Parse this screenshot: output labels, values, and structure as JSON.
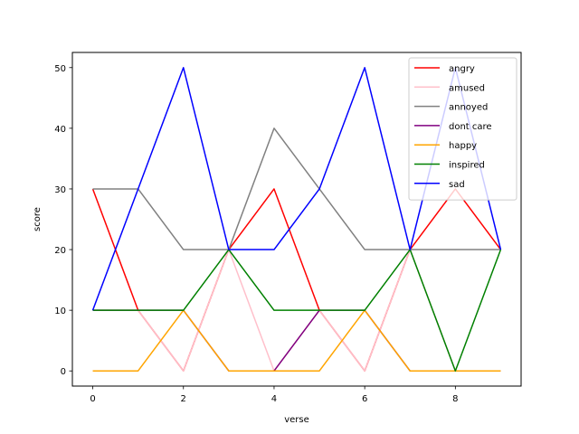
{
  "chart_data": {
    "type": "line",
    "title": "",
    "xlabel": "verse",
    "ylabel": "score",
    "xlim": [
      -0.45,
      9.45
    ],
    "ylim": [
      -2.5,
      52.5
    ],
    "xticks": [
      0,
      2,
      4,
      6,
      8
    ],
    "yticks": [
      0,
      10,
      20,
      30,
      40,
      50
    ],
    "grid": false,
    "legend_position": "upper right",
    "x": [
      0,
      1,
      2,
      3,
      4,
      5,
      6,
      7,
      8,
      9
    ],
    "series": [
      {
        "name": "angry",
        "color": "#ff0000",
        "values": [
          30,
          10,
          0,
          20,
          30,
          10,
          0,
          20,
          30,
          20
        ]
      },
      {
        "name": "amused",
        "color": "#ffc0cb",
        "values": [
          10,
          10,
          0,
          20,
          0,
          10,
          0,
          20,
          0,
          0
        ]
      },
      {
        "name": "annoyed",
        "color": "#808080",
        "values": [
          30,
          30,
          20,
          20,
          40,
          30,
          20,
          20,
          20,
          20
        ]
      },
      {
        "name": "dont care",
        "color": "#800080",
        "values": [
          10,
          10,
          10,
          0,
          0,
          10,
          10,
          0,
          0,
          0
        ]
      },
      {
        "name": "happy",
        "color": "#ffa500",
        "values": [
          0,
          0,
          10,
          0,
          0,
          0,
          10,
          0,
          0,
          0
        ]
      },
      {
        "name": "inspired",
        "color": "#008000",
        "values": [
          10,
          10,
          10,
          20,
          10,
          10,
          10,
          20,
          0,
          20
        ]
      },
      {
        "name": "sad",
        "color": "#0000ff",
        "values": [
          10,
          30,
          50,
          20,
          20,
          30,
          50,
          20,
          50,
          20
        ]
      }
    ]
  }
}
